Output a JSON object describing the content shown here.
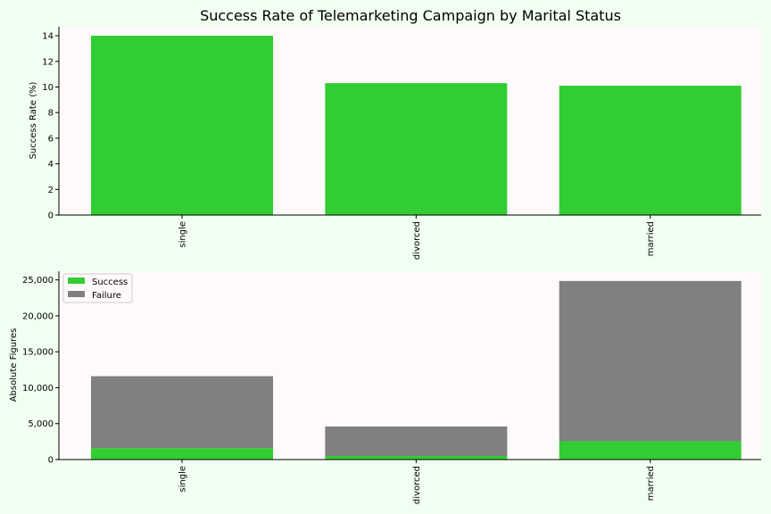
{
  "chart_data": [
    {
      "type": "bar",
      "title": "Success Rate of Telemarketing Campaign by Marital Status",
      "xlabel": "",
      "ylabel": "Success Rate (%)",
      "categories": [
        "single",
        "divorced",
        "married"
      ],
      "values": [
        14.0,
        10.3,
        10.1
      ],
      "ylim": [
        0,
        14.7
      ],
      "yticks": [
        0,
        2,
        4,
        6,
        8,
        10,
        12,
        14
      ],
      "ytick_labels": [
        "0",
        "2",
        "4",
        "6",
        "8",
        "10",
        "12",
        "14"
      ],
      "color": "#32cd32",
      "grid": false
    },
    {
      "type": "bar",
      "stacked": true,
      "title": "",
      "xlabel": "",
      "ylabel": "Absolute Figures",
      "categories": [
        "single",
        "divorced",
        "married"
      ],
      "series": [
        {
          "name": "Success",
          "values": [
            1600,
            500,
            2550
          ],
          "color": "#32cd32"
        },
        {
          "name": "Failure",
          "values": [
            10000,
            4100,
            22300
          ],
          "color": "#808080"
        }
      ],
      "ylim": [
        0,
        26200
      ],
      "yticks": [
        0,
        5000,
        10000,
        15000,
        20000,
        25000
      ],
      "ytick_labels": [
        "0",
        "5,000",
        "10,000",
        "15,000",
        "20,000",
        "25,000"
      ],
      "legend": "top-left",
      "grid": false
    }
  ],
  "colors": {
    "figure_bg": "#f0fff0",
    "axes_bg": "#fffafa"
  }
}
